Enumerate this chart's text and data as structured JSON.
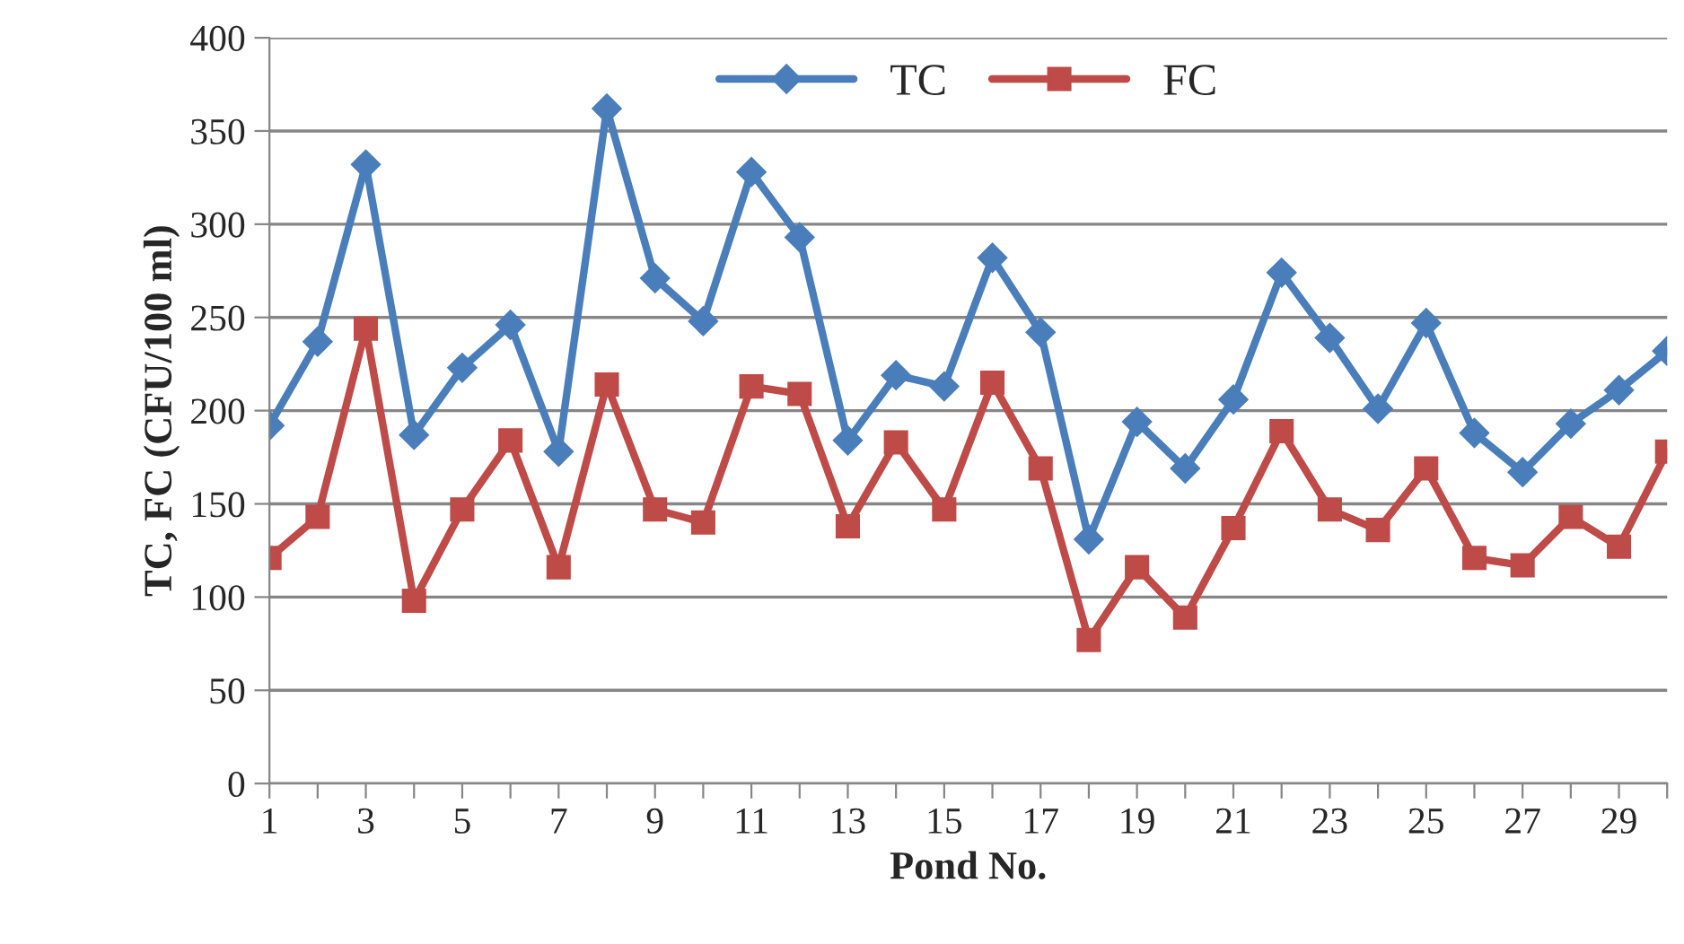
{
  "chart_data": {
    "type": "line",
    "xlabel": "Pond No.",
    "ylabel": "TC, FC (CFU/100 ml)",
    "categories": [
      "1",
      null,
      "3",
      null,
      "5",
      null,
      "7",
      null,
      "9",
      null,
      "11",
      null,
      "13",
      null,
      "15",
      null,
      "17",
      null,
      "19",
      null,
      "21",
      null,
      "23",
      null,
      "25",
      null,
      "27",
      null,
      "29",
      null
    ],
    "series": [
      {
        "name": "TC",
        "color": "#4a7ebb",
        "marker": "diamond",
        "values": [
          192,
          237,
          332,
          187,
          223,
          246,
          178,
          362,
          271,
          248,
          328,
          293,
          184,
          219,
          213,
          282,
          242,
          131,
          194,
          169,
          206,
          274,
          239,
          201,
          247,
          188,
          167,
          193,
          211,
          232
        ]
      },
      {
        "name": "FC",
        "color": "#be4b48",
        "marker": "square",
        "values": [
          121,
          143,
          244,
          98,
          147,
          184,
          116,
          214,
          147,
          140,
          213,
          209,
          138,
          183,
          147,
          215,
          169,
          77,
          116,
          89,
          137,
          189,
          147,
          136,
          169,
          121,
          117,
          143,
          127,
          178
        ]
      }
    ],
    "ylim": [
      0,
      400
    ],
    "yticks": [
      0,
      50,
      100,
      150,
      200,
      250,
      300,
      350,
      400
    ],
    "grid": "y",
    "legend": "top",
    "line_style": "solid"
  }
}
